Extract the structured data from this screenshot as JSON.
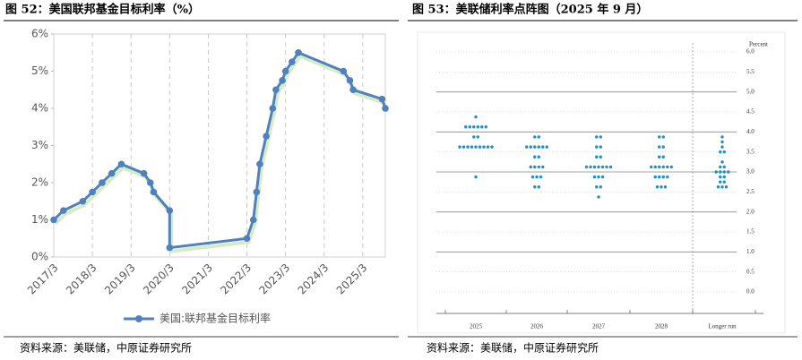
{
  "chart_data": [
    {
      "type": "line",
      "title": "图 52：美国联邦基金目标利率（%）",
      "source": "资料来源：美联储，中原证券研究所",
      "x": [
        "2017/3",
        "2017/6",
        "2017/12",
        "2018/3",
        "2018/6",
        "2018/9",
        "2018/12",
        "2019/7",
        "2019/9",
        "2019/10",
        "2020/3",
        "2020/3",
        "2022/3",
        "2022/5",
        "2022/6",
        "2022/7",
        "2022/9",
        "2022/11",
        "2022/12",
        "2023/2",
        "2023/3",
        "2023/5",
        "2023/7",
        "2024/9",
        "2024/11",
        "2024/12",
        "2025/9",
        "2025/10"
      ],
      "series": [
        {
          "name": "美国:联邦基金目标利率",
          "color": "#4f81bd",
          "values": [
            1.0,
            1.25,
            1.5,
            1.75,
            2.0,
            2.25,
            2.5,
            2.25,
            2.0,
            1.75,
            1.25,
            0.25,
            0.5,
            1.0,
            1.75,
            2.5,
            3.25,
            4.0,
            4.5,
            4.75,
            5.0,
            5.25,
            5.5,
            5.0,
            4.75,
            4.5,
            4.25,
            4.0
          ]
        }
      ],
      "xlim": [
        "2017/3",
        "2025/10"
      ],
      "xticks": [
        "2017/3",
        "2018/3",
        "2019/3",
        "2020/3",
        "2021/3",
        "2022/3",
        "2023/3",
        "2024/3",
        "2025/3"
      ],
      "ylim": [
        0,
        6
      ],
      "yticks": [
        {
          "value": 0,
          "label": "0%"
        },
        {
          "value": 1,
          "label": "1%"
        },
        {
          "value": 2,
          "label": "2%"
        },
        {
          "value": 3,
          "label": "3%"
        },
        {
          "value": 4,
          "label": "4%"
        },
        {
          "value": 5,
          "label": "5%"
        },
        {
          "value": 6,
          "label": "6%"
        }
      ],
      "legend": "bottom"
    },
    {
      "type": "dot_plot",
      "title": "图 53：美联储利率点阵图（2025 年 9 月）",
      "source": "资料来源：美联储，中原证券研究所",
      "y_label": "Percent",
      "color": "#1f8fc9",
      "categories": [
        "2025",
        "2026",
        "2027",
        "2028",
        "Longer run"
      ],
      "dots": [
        [
          4.375,
          4.125,
          4.125,
          4.125,
          4.125,
          4.125,
          4.125,
          3.875,
          3.875,
          3.625,
          3.625,
          3.625,
          3.625,
          3.625,
          3.625,
          3.625,
          3.625,
          3.625,
          2.875
        ],
        [
          3.875,
          3.875,
          3.625,
          3.625,
          3.625,
          3.625,
          3.625,
          3.625,
          3.375,
          3.375,
          3.125,
          3.125,
          3.125,
          3.125,
          2.875,
          2.875,
          2.875,
          2.625,
          2.625
        ],
        [
          3.875,
          3.875,
          3.625,
          3.625,
          3.375,
          3.375,
          3.125,
          3.125,
          3.125,
          3.125,
          3.125,
          3.125,
          3.125,
          2.875,
          2.875,
          2.875,
          2.625,
          2.625,
          2.375
        ],
        [
          3.875,
          3.875,
          3.625,
          3.625,
          3.375,
          3.375,
          3.125,
          3.125,
          3.125,
          3.125,
          3.125,
          3.125,
          2.875,
          2.875,
          2.875,
          2.875,
          2.625,
          2.625,
          2.625
        ],
        [
          3.875,
          3.75,
          3.625,
          3.5,
          3.5,
          3.25,
          3.125,
          3.125,
          3.0,
          3.0,
          3.0,
          3.0,
          2.875,
          2.875,
          2.75,
          2.75,
          2.625,
          2.625,
          2.625
        ]
      ],
      "ylim": [
        0,
        6
      ],
      "yticks": [
        {
          "value": 0,
          "label": "0.0"
        },
        {
          "value": 0.5,
          "label": "0.5"
        },
        {
          "value": 1,
          "label": "1.0"
        },
        {
          "value": 1.5,
          "label": "1.5"
        },
        {
          "value": 2,
          "label": "2.0"
        },
        {
          "value": 2.5,
          "label": "2.5"
        },
        {
          "value": 3,
          "label": "3.0"
        },
        {
          "value": 3.5,
          "label": "3.5"
        },
        {
          "value": 4,
          "label": "4.0"
        },
        {
          "value": 4.5,
          "label": "4.5"
        },
        {
          "value": 5,
          "label": "5.0"
        },
        {
          "value": 5.5,
          "label": "5.5"
        },
        {
          "value": 6,
          "label": "6.0"
        }
      ]
    }
  ]
}
